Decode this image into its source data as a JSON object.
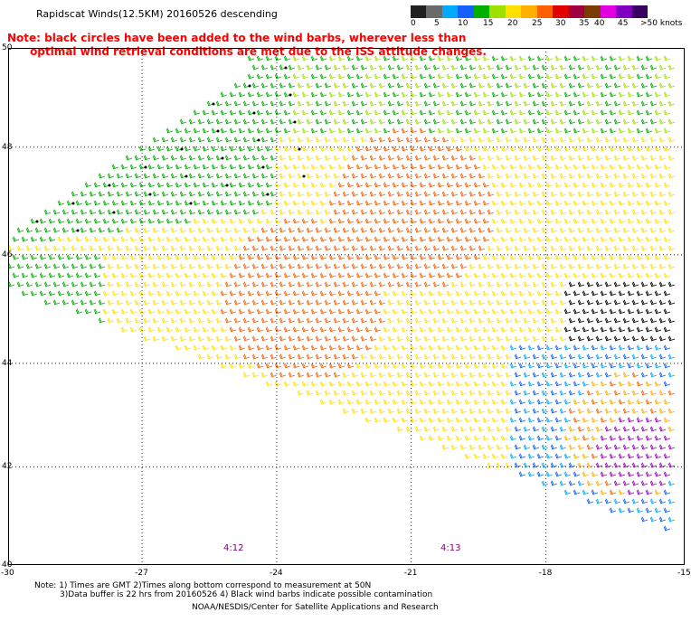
{
  "header": {
    "title": "Rapidscat Winds(12.5KM) 20160526 descending"
  },
  "note": {
    "line1": "Note: black circles have been added to the wind barbs, wherever less than",
    "line2": "      optimal wind retrieval conditions are met due to the ISS attitude changes."
  },
  "color_scale": {
    "labels": [
      "0",
      "5",
      "10",
      "15",
      "20",
      "25",
      "30",
      "35",
      "40",
      "45",
      ">50 knots"
    ],
    "colors": [
      "#202020",
      "#6a6a6a",
      "#00aaff",
      "#1560ff",
      "#00b000",
      "#a0e000",
      "#ffe000",
      "#ffb000",
      "#ff6000",
      "#e00000",
      "#a00040",
      "#7a3b00",
      "#e000e0",
      "#8000c0",
      "#3a0060"
    ]
  },
  "axes": {
    "lat_labels": [
      "50",
      "48",
      "46",
      "44",
      "42",
      "40"
    ],
    "lon_labels": [
      "-30",
      "-27",
      "-24",
      "-21",
      "-18",
      "-15"
    ]
  },
  "times": [
    "4:12",
    "4:13"
  ],
  "footer": {
    "line1": "Note: 1) Times are GMT 2)Times along bottom correspond to measurement at 50N",
    "line2": "3)Data buffer is 22 hrs from 20160526 4) Black wind barbs indicate possible contamination",
    "line3": "NOAA/NESDIS/Center for Satellite Applications and Research"
  }
}
